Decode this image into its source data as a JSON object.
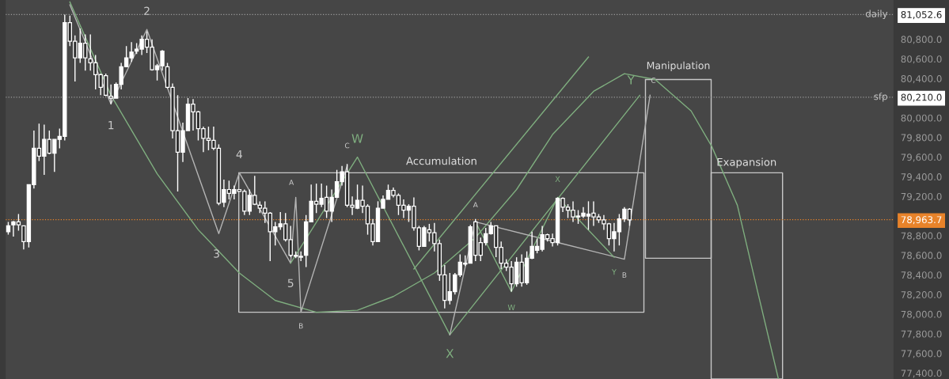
{
  "chart_data": {
    "type": "candlestick",
    "categories": [
      null,
      null,
      null,
      null,
      null,
      null,
      null,
      null,
      null,
      null,
      null,
      null,
      null,
      null,
      null,
      null,
      null,
      null,
      null,
      null,
      null,
      null,
      null,
      null,
      null,
      null,
      null,
      null,
      null,
      null,
      null,
      null,
      null,
      null,
      null,
      null,
      null,
      null,
      null,
      null,
      null,
      null,
      null,
      null,
      null,
      null,
      null,
      null,
      null,
      null,
      null,
      null,
      null,
      null,
      null,
      null,
      null,
      null,
      null,
      null,
      null,
      null,
      null,
      null,
      null,
      null,
      null,
      null,
      null,
      null,
      null,
      null,
      null,
      null,
      null,
      null,
      null,
      null,
      null,
      null,
      null,
      null,
      null,
      null,
      null,
      null,
      null,
      null,
      null,
      null,
      null,
      null,
      null,
      null,
      null,
      null,
      null,
      null,
      null,
      null,
      null,
      null,
      null,
      null,
      null,
      null,
      null,
      null,
      null,
      null,
      null,
      null,
      null,
      null,
      null,
      null,
      null,
      null,
      null,
      null,
      null,
      null,
      null,
      null,
      null,
      null,
      null,
      null,
      null,
      null,
      null,
      null,
      null,
      null,
      null,
      null,
      null,
      null,
      null,
      null,
      null,
      null,
      null,
      null,
      null,
      null,
      null,
      null,
      null,
      null,
      null,
      null,
      null,
      null,
      null,
      null,
      null,
      null,
      null,
      null,
      null,
      null,
      null,
      null,
      null,
      null,
      null,
      null,
      null,
      null,
      null,
      null,
      null
    ],
    "color": "#ffffff",
    "ohlc": [
      [
        78840,
        78940,
        78810,
        78900
      ],
      [
        78910,
        78950,
        78790,
        78940
      ],
      [
        78940,
        79020,
        78850,
        78910
      ],
      [
        78900,
        78900,
        78660,
        78740
      ],
      [
        78740,
        79320,
        78680,
        79320
      ],
      [
        79320,
        79870,
        79280,
        79690
      ],
      [
        79690,
        79940,
        79560,
        79610
      ],
      [
        79610,
        79930,
        79420,
        79780
      ],
      [
        79780,
        79870,
        79630,
        79640
      ],
      [
        79640,
        79780,
        79450,
        79780
      ],
      [
        79780,
        79890,
        79690,
        79810
      ],
      [
        79810,
        81050,
        79770,
        80970
      ],
      [
        80970,
        81040,
        80730,
        80780
      ],
      [
        80780,
        80840,
        80370,
        80610
      ],
      [
        80610,
        80910,
        80560,
        80760
      ],
      [
        80760,
        80850,
        80480,
        80610
      ],
      [
        80600,
        80850,
        80480,
        80560
      ],
      [
        80560,
        80640,
        80290,
        80440
      ],
      [
        80440,
        80450,
        80230,
        80310
      ],
      [
        80430,
        80450,
        80220,
        80230
      ],
      [
        80220,
        80340,
        80140,
        80200
      ],
      [
        80200,
        80360,
        80200,
        80340
      ],
      [
        80340,
        80560,
        80290,
        80520
      ],
      [
        80520,
        80730,
        80520,
        80610
      ],
      [
        80610,
        80770,
        80570,
        80670
      ],
      [
        80680,
        80760,
        80650,
        80700
      ],
      [
        80700,
        80840,
        80640,
        80800
      ],
      [
        80800,
        80880,
        80660,
        80720
      ],
      [
        80720,
        80800,
        80480,
        80490
      ],
      [
        80490,
        80550,
        80380,
        80530
      ],
      [
        80530,
        80690,
        80480,
        80680
      ],
      [
        80520,
        80560,
        80300,
        80310
      ],
      [
        80310,
        80350,
        79790,
        79870
      ],
      [
        79870,
        80230,
        79250,
        79650
      ],
      [
        79650,
        79950,
        79550,
        79870
      ],
      [
        79870,
        80200,
        79870,
        80140
      ],
      [
        80140,
        80190,
        79870,
        80060
      ],
      [
        80060,
        80070,
        79770,
        79890
      ],
      [
        79890,
        79910,
        79650,
        79790
      ],
      [
        79790,
        79910,
        79670,
        79770
      ],
      [
        79770,
        79910,
        79670,
        79690
      ],
      [
        79690,
        79730,
        79110,
        79130
      ],
      [
        79140,
        79370,
        79090,
        79270
      ],
      [
        79270,
        79360,
        79170,
        79230
      ],
      [
        79230,
        79310,
        79170,
        79270
      ],
      [
        79270,
        79270,
        79250,
        79250
      ],
      [
        79250,
        79270,
        79010,
        79050
      ],
      [
        79050,
        79270,
        79010,
        79210
      ],
      [
        79210,
        79410,
        79110,
        79120
      ],
      [
        79110,
        79150,
        79030,
        79080
      ],
      [
        79080,
        79150,
        78930,
        79030
      ],
      [
        79030,
        79040,
        78540,
        78840
      ],
      [
        78840,
        78940,
        78700,
        78890
      ],
      [
        78890,
        79040,
        78860,
        78920
      ],
      [
        78920,
        79030,
        78740,
        78760
      ],
      [
        78760,
        78900,
        78580,
        78600
      ],
      [
        78600,
        78640,
        78570,
        78590
      ],
      [
        78590,
        78640,
        78540,
        78580
      ],
      [
        78600,
        79010,
        78480,
        78940
      ],
      [
        78940,
        79320,
        78940,
        79150
      ],
      [
        79150,
        79330,
        79030,
        79120
      ],
      [
        79120,
        79330,
        79090,
        79180
      ],
      [
        79190,
        79310,
        78980,
        79050
      ],
      [
        79050,
        79270,
        78940,
        79190
      ],
      [
        79190,
        79470,
        79190,
        79350
      ],
      [
        79350,
        79510,
        79310,
        79450
      ],
      [
        79450,
        79530,
        79090,
        79110
      ],
      [
        79110,
        79200,
        79010,
        79090
      ],
      [
        79080,
        79320,
        79070,
        79160
      ],
      [
        79160,
        79310,
        79030,
        79100
      ],
      [
        79100,
        79120,
        78810,
        78920
      ],
      [
        78920,
        78970,
        78700,
        78740
      ],
      [
        78740,
        79150,
        78740,
        79080
      ],
      [
        79080,
        79210,
        79080,
        79170
      ],
      [
        79170,
        79320,
        79170,
        79260
      ],
      [
        79260,
        79290,
        79190,
        79210
      ],
      [
        79210,
        79230,
        79010,
        79110
      ],
      [
        79110,
        79170,
        78980,
        79060
      ],
      [
        79060,
        79120,
        78940,
        79100
      ],
      [
        79100,
        79190,
        78850,
        78880
      ],
      [
        78880,
        78900,
        78650,
        78690
      ],
      [
        78690,
        78900,
        78690,
        78880
      ],
      [
        78860,
        78920,
        78740,
        78830
      ],
      [
        78830,
        78930,
        78640,
        78720
      ],
      [
        78720,
        78760,
        78340,
        78400
      ],
      [
        78400,
        78500,
        78060,
        78140
      ],
      [
        78140,
        78420,
        78100,
        78230
      ],
      [
        78230,
        78420,
        78200,
        78400
      ],
      [
        78400,
        78610,
        78380,
        78530
      ],
      [
        78520,
        78600,
        78490,
        78510
      ],
      [
        78520,
        78910,
        78520,
        78890
      ],
      [
        78940,
        78970,
        78540,
        78600
      ],
      [
        78730,
        78780,
        78540,
        78600
      ],
      [
        78730,
        78880,
        78700,
        78820
      ],
      [
        78820,
        78940,
        78810,
        78900
      ],
      [
        78900,
        78900,
        78580,
        78680
      ],
      [
        78680,
        78740,
        78460,
        78520
      ],
      [
        78520,
        78560,
        78440,
        78480
      ],
      [
        78480,
        78540,
        78230,
        78310
      ],
      [
        78310,
        78580,
        78280,
        78530
      ],
      [
        78530,
        78610,
        78280,
        78320
      ],
      [
        78320,
        78640,
        78300,
        78570
      ],
      [
        78570,
        78840,
        78560,
        78690
      ],
      [
        78650,
        78770,
        78620,
        78690
      ],
      [
        78660,
        78900,
        78640,
        78810
      ],
      [
        78810,
        78820,
        78740,
        78770
      ],
      [
        78770,
        78820,
        78690,
        78730
      ],
      [
        78730,
        79190,
        78700,
        79180
      ],
      [
        79180,
        79190,
        79040,
        79090
      ],
      [
        79090,
        79120,
        78980,
        79060
      ],
      [
        79060,
        79150,
        78940,
        78990
      ],
      [
        79000,
        79060,
        78920,
        78990
      ],
      [
        79000,
        79090,
        78980,
        79030
      ],
      [
        79000,
        79150,
        78860,
        79020
      ],
      [
        79030,
        79150,
        78900,
        78990
      ],
      [
        78990,
        79020,
        78930,
        78960
      ],
      [
        78960,
        79010,
        78860,
        78920
      ],
      [
        78920,
        78930,
        78700,
        78770
      ],
      [
        78770,
        78930,
        78640,
        78840
      ],
      [
        78840,
        79020,
        78700,
        78970
      ],
      [
        78970,
        79090,
        78940,
        79070
      ],
      [
        79070,
        79080,
        78900,
        78960
      ],
      null,
      null,
      null,
      null,
      null,
      null,
      null,
      null,
      null,
      null,
      null,
      null,
      null,
      null,
      null,
      null,
      null,
      null,
      null,
      null,
      null,
      null,
      null,
      null,
      null,
      null,
      null,
      null,
      null,
      null,
      null,
      null,
      null,
      null,
      null,
      null,
      null,
      null,
      null,
      null,
      null,
      null,
      null,
      null,
      null,
      null,
      null,
      null,
      null,
      null,
      null
    ],
    "series": [
      {
        "type": "line",
        "color": "#7fae7f",
        "values": [
          null,
          null,
          null,
          null,
          null,
          null,
          null,
          null,
          null,
          null,
          null,
          null,
          81180,
          null,
          null,
          null,
          null,
          null,
          null,
          null,
          80230,
          null,
          null,
          null,
          null,
          null,
          null,
          null,
          null,
          79430,
          null,
          null,
          null,
          null,
          null,
          null,
          null,
          78860,
          null,
          null,
          null,
          null,
          null,
          null,
          null,
          78420,
          null,
          null,
          null,
          null,
          null,
          null,
          78140,
          null,
          null,
          null,
          null,
          null,
          null,
          null,
          78020,
          null,
          null,
          null,
          null,
          null,
          null,
          null,
          78040,
          null,
          null,
          null,
          null,
          null,
          null,
          78180,
          null,
          null,
          null,
          null,
          null,
          null,
          null,
          78420,
          null,
          null,
          null,
          null,
          null,
          null,
          null,
          78780,
          null,
          null,
          null,
          null,
          null,
          null,
          null,
          79270,
          null,
          null,
          null,
          null,
          null,
          null,
          79830,
          null,
          null,
          null,
          null,
          null,
          null,
          null,
          80270,
          null,
          null,
          null,
          null,
          null,
          80450,
          null,
          null,
          null,
          null,
          null,
          80390,
          null,
          null,
          null,
          null,
          null,
          null,
          80070,
          null,
          null,
          null,
          79710,
          null,
          null,
          null,
          null,
          79110,
          null,
          null,
          null,
          78220,
          null,
          null,
          null,
          77340,
          null,
          null,
          null,
          null,
          null,
          null,
          null,
          null,
          null,
          null,
          null,
          null,
          null,
          null,
          null,
          null,
          null,
          null,
          null,
          null,
          null,
          null
        ]
      },
      {
        "type": "line",
        "color": "#b4b4b4",
        "values": [
          null,
          null,
          null,
          null,
          null,
          null,
          null,
          null,
          null,
          null,
          null,
          null,
          81150,
          null,
          null,
          null,
          null,
          null,
          null,
          null,
          80140,
          null,
          null,
          null,
          null,
          null,
          null,
          80900,
          null,
          null,
          null,
          null,
          null,
          null,
          null,
          null,
          null,
          null,
          null,
          null,
          null,
          78820,
          null,
          null,
          null,
          79440,
          null,
          null,
          null,
          null,
          null,
          null,
          null,
          null,
          null,
          78520,
          79190,
          78020,
          null,
          null,
          null,
          null,
          null,
          null,
          null,
          null,
          79510,
          null,
          null,
          null,
          null,
          null,
          null,
          null,
          null,
          null,
          null,
          null,
          null,
          null,
          null,
          null,
          null,
          null,
          null,
          null,
          null,
          null,
          null,
          null,
          null,
          null,
          null,
          null,
          null,
          null,
          null,
          null,
          null,
          null,
          null,
          null,
          null,
          null,
          null,
          null,
          null,
          null,
          null,
          null,
          null,
          null,
          null,
          null,
          null,
          null,
          null,
          null,
          null,
          null,
          null,
          null,
          null,
          null,
          null,
          null,
          null,
          null,
          null,
          null,
          null,
          null,
          null,
          null,
          null,
          null,
          null,
          null,
          null,
          null,
          null,
          null,
          null,
          null,
          null,
          null,
          null,
          null,
          null,
          null,
          null,
          null,
          null,
          null,
          null,
          null,
          null,
          null,
          null,
          null,
          null,
          null,
          null,
          null,
          null,
          null,
          null,
          null,
          null,
          null,
          null,
          null,
          null
        ]
      },
      {
        "type": "line",
        "color": "#7fae7f",
        "values": [
          null,
          null,
          null,
          null,
          null,
          null,
          null,
          null,
          null,
          null,
          null,
          null,
          null,
          null,
          null,
          null,
          null,
          null,
          null,
          null,
          null,
          null,
          null,
          null,
          null,
          null,
          null,
          null,
          null,
          null,
          null,
          null,
          null,
          null,
          null,
          null,
          null,
          null,
          null,
          null,
          null,
          null,
          null,
          null,
          null,
          null,
          null,
          null,
          null,
          null,
          null,
          null,
          null,
          null,
          null,
          78520,
          null,
          null,
          null,
          null,
          null,
          null,
          null,
          null,
          null,
          null,
          null,
          null,
          79600,
          null,
          null,
          null,
          null,
          null,
          null,
          null,
          null,
          null,
          null,
          null,
          null,
          null,
          null,
          null,
          null,
          null,
          77790,
          null,
          null,
          null,
          null,
          null,
          null,
          null,
          null,
          null,
          null,
          null,
          null,
          null,
          null,
          null,
          null,
          null,
          null,
          null,
          null,
          null,
          null,
          null,
          null,
          null,
          null,
          null,
          null,
          null,
          null,
          null,
          null,
          null,
          null,
          null,
          null,
          80230,
          null,
          null,
          null,
          null,
          null,
          null,
          null,
          null,
          null,
          null,
          null,
          null,
          null,
          null,
          null,
          null,
          null,
          null,
          null,
          null,
          null,
          null,
          null,
          null,
          null,
          null,
          null,
          null,
          null,
          null,
          null,
          null,
          null,
          null,
          null,
          null,
          null,
          null,
          null,
          null,
          null,
          null,
          null,
          null,
          null,
          null,
          null,
          null,
          null
        ]
      },
      {
        "type": "line",
        "color": "#7fae7f",
        "values": [
          null,
          null,
          null,
          null,
          null,
          null,
          null,
          null,
          null,
          null,
          null,
          null,
          null,
          null,
          null,
          null,
          null,
          null,
          null,
          null,
          null,
          null,
          null,
          null,
          null,
          null,
          null,
          null,
          null,
          null,
          null,
          null,
          null,
          null,
          null,
          null,
          null,
          null,
          null,
          null,
          null,
          null,
          null,
          null,
          null,
          null,
          null,
          null,
          null,
          null,
          null,
          null,
          null,
          null,
          null,
          null,
          null,
          null,
          null,
          null,
          null,
          null,
          null,
          null,
          null,
          null,
          null,
          null,
          null,
          null,
          null,
          null,
          null,
          null,
          null,
          null,
          null,
          null,
          null,
          78460,
          null,
          null,
          null,
          null,
          null,
          null,
          null,
          null,
          null,
          null,
          null,
          null,
          null,
          null,
          null,
          null,
          null,
          null,
          null,
          null,
          null,
          null,
          null,
          null,
          null,
          null,
          null,
          null,
          null,
          null,
          null,
          null,
          null,
          80620,
          null,
          null,
          null,
          null,
          null,
          null,
          null,
          null,
          null,
          null,
          null,
          null,
          null,
          null,
          null,
          null,
          null,
          null,
          null,
          null,
          null,
          null,
          null,
          null,
          null,
          null,
          null,
          null,
          null,
          null,
          null,
          null,
          null,
          null,
          null,
          null,
          null,
          null,
          null,
          null,
          null,
          null,
          null,
          null,
          null,
          null,
          null,
          null,
          null,
          null,
          null,
          null,
          null,
          null,
          null,
          null,
          null,
          null,
          null
        ]
      },
      {
        "type": "line",
        "color": "#b4b4b4",
        "values": [
          null,
          null,
          null,
          null,
          null,
          null,
          null,
          null,
          null,
          null,
          null,
          null,
          null,
          null,
          null,
          null,
          null,
          null,
          null,
          null,
          null,
          null,
          null,
          null,
          null,
          null,
          null,
          null,
          null,
          null,
          null,
          null,
          null,
          null,
          null,
          null,
          null,
          null,
          null,
          null,
          null,
          null,
          null,
          null,
          null,
          null,
          null,
          null,
          null,
          null,
          null,
          null,
          null,
          null,
          null,
          null,
          null,
          null,
          null,
          null,
          null,
          null,
          null,
          null,
          null,
          null,
          null,
          null,
          null,
          null,
          null,
          null,
          null,
          null,
          null,
          null,
          null,
          null,
          null,
          null,
          null,
          null,
          null,
          null,
          null,
          null,
          77790,
          null,
          null,
          null,
          null,
          78940,
          null,
          null,
          null,
          null,
          null,
          null,
          null,
          null,
          null,
          null,
          null,
          null,
          null,
          null,
          null,
          78730,
          null,
          null,
          null,
          null,
          null,
          null,
          null,
          null,
          null,
          null,
          null,
          null,
          78560,
          null,
          null,
          null,
          null,
          80230,
          null,
          null,
          null,
          null,
          null,
          null,
          null,
          null,
          null,
          null,
          null,
          null,
          null,
          null,
          null,
          null,
          null,
          null,
          null,
          null,
          null,
          null,
          null,
          null,
          null,
          null,
          null,
          null,
          null,
          null,
          null,
          null,
          null,
          null,
          null,
          null,
          null,
          null,
          null,
          null,
          null,
          null,
          null,
          null,
          null,
          null,
          null
        ]
      },
      {
        "type": "line",
        "color": "#7fae7f",
        "values": [
          null,
          null,
          null,
          null,
          null,
          null,
          null,
          null,
          null,
          null,
          null,
          null,
          null,
          null,
          null,
          null,
          null,
          null,
          null,
          null,
          null,
          null,
          null,
          null,
          null,
          null,
          null,
          null,
          null,
          null,
          null,
          null,
          null,
          null,
          null,
          null,
          null,
          null,
          null,
          null,
          null,
          null,
          null,
          null,
          null,
          null,
          null,
          null,
          null,
          null,
          null,
          null,
          null,
          null,
          null,
          null,
          null,
          null,
          null,
          null,
          null,
          null,
          null,
          null,
          null,
          null,
          null,
          null,
          null,
          null,
          null,
          null,
          null,
          null,
          null,
          null,
          null,
          null,
          null,
          null,
          null,
          null,
          null,
          null,
          null,
          null,
          null,
          null,
          null,
          null,
          null,
          78940,
          null,
          null,
          null,
          null,
          null,
          null,
          78230,
          null,
          null,
          null,
          null,
          null,
          null,
          null,
          null,
          79190,
          null,
          null,
          null,
          null,
          null,
          null,
          null,
          null,
          null,
          null,
          78580,
          null,
          null,
          null,
          null,
          null,
          null,
          null,
          null,
          null,
          null,
          null,
          null,
          null,
          null,
          null,
          null,
          null,
          null,
          null,
          null,
          null,
          null,
          null,
          null,
          null,
          null,
          null,
          null,
          null,
          null,
          null,
          null,
          null,
          null,
          null,
          null,
          null,
          null,
          null,
          null,
          null,
          null,
          null,
          null,
          null,
          null,
          null,
          null,
          null,
          null,
          null,
          null,
          null,
          null
        ]
      }
    ],
    "annotations": [
      "1",
      "2",
      "3",
      "4",
      "5",
      "A",
      "B",
      "C",
      "A",
      "B",
      "C",
      "W",
      "X",
      "Y",
      "W",
      "X",
      "Y",
      "Accumulation",
      "Manipulation",
      "Exapansion"
    ],
    "ref_lines": [
      {
        "axis": "y",
        "value": 81052.6,
        "label": "daily",
        "color": "#9a9a9a",
        "line_style": "dotted"
      },
      {
        "axis": "y",
        "value": 80210,
        "label": "sfp",
        "color": "#9a9a9a",
        "line_style": "dotted"
      },
      {
        "axis": "y",
        "value": 78963.7,
        "label": null,
        "color": "#e8832a",
        "line_style": "dotted"
      }
    ],
    "ylim": [
      77340,
      81200
    ],
    "yticks": [
      {
        "value": 77400,
        "label": "77,400.0"
      },
      {
        "value": 77600,
        "label": "77,600.0"
      },
      {
        "value": 77800,
        "label": "77,800.0"
      },
      {
        "value": 78000,
        "label": "78,000.0"
      },
      {
        "value": 78200,
        "label": "78,200.0"
      },
      {
        "value": 78400,
        "label": "78,400.0"
      },
      {
        "value": 78600,
        "label": "78,600.0"
      },
      {
        "value": 78800,
        "label": "78,800.0"
      },
      {
        "value": 78963.7,
        "label": "78,963.7"
      },
      {
        "value": 79200,
        "label": "79,200.0"
      },
      {
        "value": 79400,
        "label": "79,400.0"
      },
      {
        "value": 79600,
        "label": "79,600.0"
      },
      {
        "value": 79800,
        "label": "79,800.0"
      },
      {
        "value": 80000,
        "label": "80,000.0"
      },
      {
        "value": 80210,
        "label": "80,210.0"
      },
      {
        "value": 80400,
        "label": "80,400.0"
      },
      {
        "value": 80600,
        "label": "80,600.0"
      },
      {
        "value": 80800,
        "label": "80,800.0"
      },
      {
        "value": 81052.6,
        "label": "81,052.6"
      }
    ],
    "tick_labels": "y",
    "grid": false
  }
}
